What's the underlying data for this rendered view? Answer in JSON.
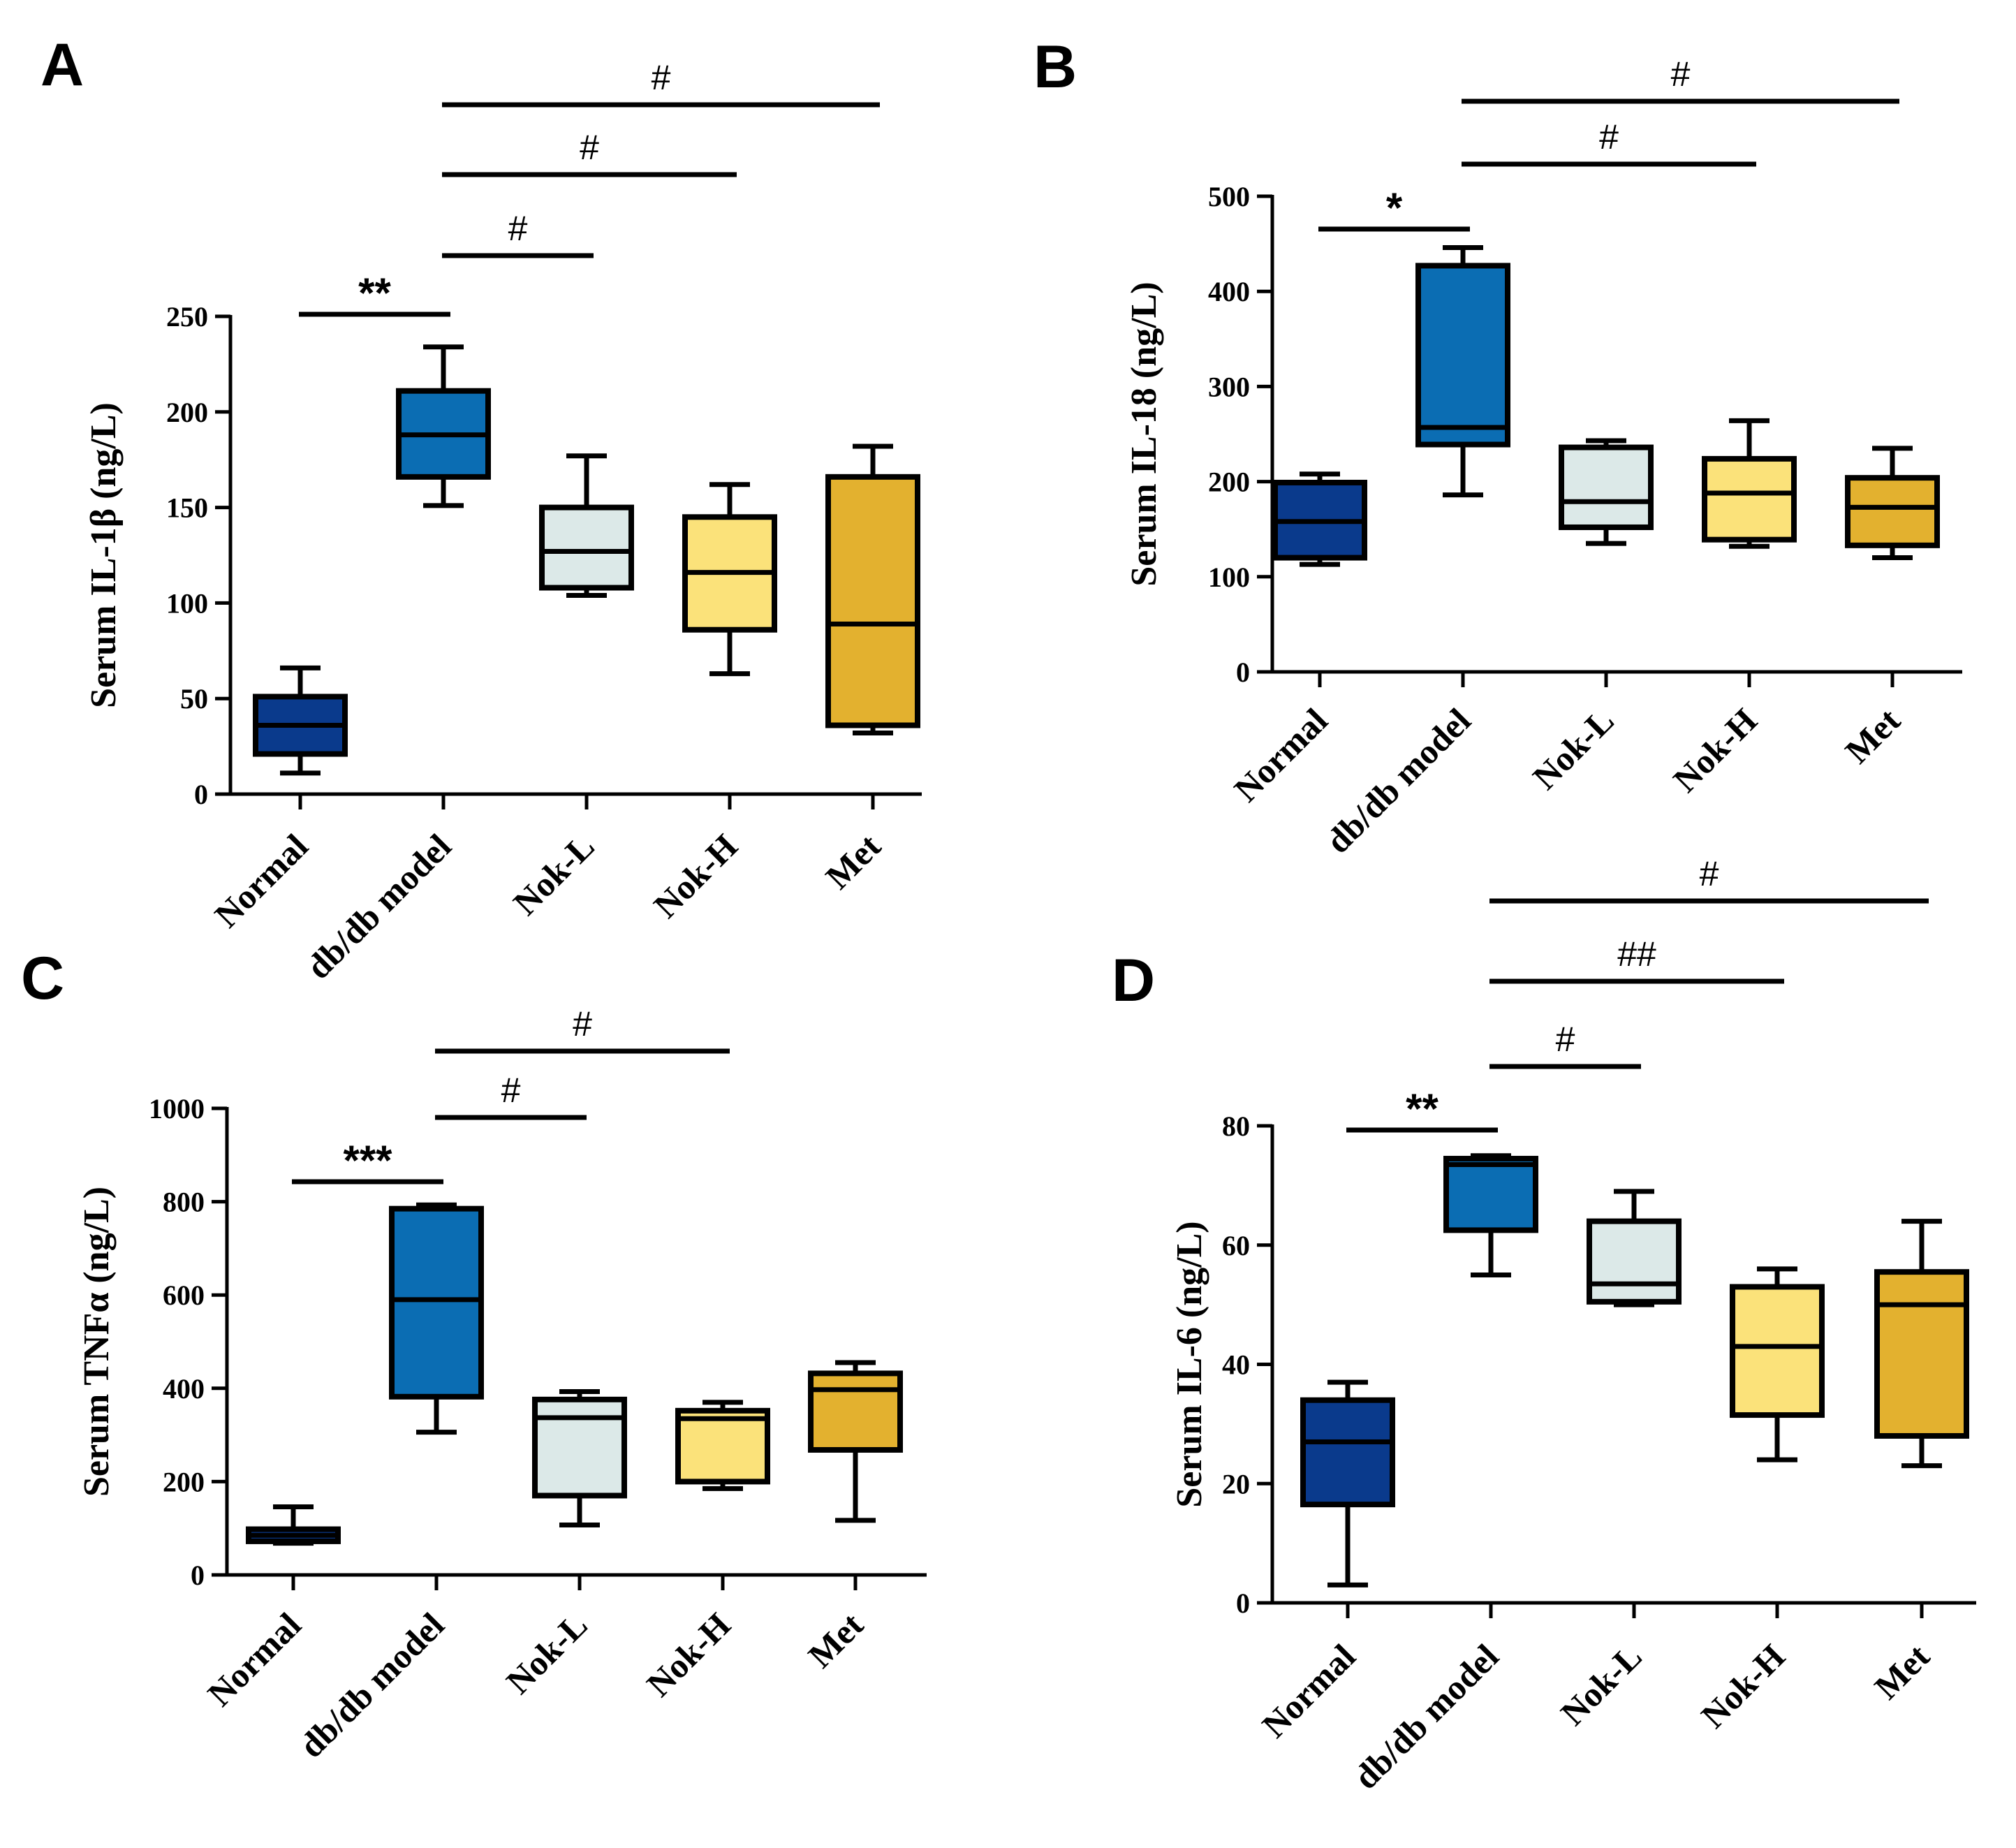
{
  "figure": {
    "colors": {
      "Normal": "#0a3a8c",
      "db/db model": "#0b6db3",
      "Nok-L": "#dce9e8",
      "Nok-H": "#fbe27a",
      "Met": "#e3b12f",
      "stroke": "#000000"
    }
  },
  "chart_data": [
    {
      "panel": "A",
      "type": "box",
      "ylabel": "Serum IL-1β (ng/L)",
      "ylim": [
        0,
        250
      ],
      "yticks": [
        0,
        50,
        100,
        150,
        200,
        250
      ],
      "categories": [
        "Normal",
        "db/db model",
        "Nok-L",
        "Nok-H",
        "Met"
      ],
      "boxes": [
        {
          "min": 11,
          "q1": 21,
          "median": 36,
          "q3": 51,
          "max": 66
        },
        {
          "min": 151,
          "q1": 166,
          "median": 188,
          "q3": 211,
          "max": 234
        },
        {
          "min": 104,
          "q1": 108,
          "median": 127,
          "q3": 150,
          "max": 177
        },
        {
          "min": 63,
          "q1": 86,
          "median": 116,
          "q3": 145,
          "max": 162
        },
        {
          "min": 32,
          "q1": 36,
          "median": 89,
          "q3": 166,
          "max": 182
        }
      ],
      "comparisons": [
        {
          "from": 0,
          "to": 1,
          "label": "**",
          "level": 0
        },
        {
          "from": 1,
          "to": 2,
          "label": "#",
          "level": 1
        },
        {
          "from": 1,
          "to": 3,
          "label": "#",
          "level": 2
        },
        {
          "from": 1,
          "to": 4,
          "label": "#",
          "level": 3
        }
      ]
    },
    {
      "panel": "B",
      "type": "box",
      "ylabel": "Serum IL-18 (ng/L)",
      "ylim": [
        0,
        500
      ],
      "yticks": [
        0,
        100,
        200,
        300,
        400,
        500
      ],
      "categories": [
        "Normal",
        "db/db model",
        "Nok-L",
        "Nok-H",
        "Met"
      ],
      "boxes": [
        {
          "min": 113,
          "q1": 120,
          "median": 158,
          "q3": 199,
          "max": 208
        },
        {
          "min": 186,
          "q1": 239,
          "median": 257,
          "q3": 427,
          "max": 446
        },
        {
          "min": 135,
          "q1": 152,
          "median": 179,
          "q3": 236,
          "max": 243
        },
        {
          "min": 132,
          "q1": 139,
          "median": 188,
          "q3": 224,
          "max": 264
        },
        {
          "min": 120,
          "q1": 133,
          "median": 173,
          "q3": 204,
          "max": 235
        }
      ],
      "comparisons": [
        {
          "from": 0,
          "to": 1,
          "label": "*",
          "level": 0
        },
        {
          "from": 1,
          "to": 3,
          "label": "#",
          "level": 1
        },
        {
          "from": 1,
          "to": 4,
          "label": "#",
          "level": 2
        }
      ]
    },
    {
      "panel": "C",
      "type": "box",
      "ylabel": "Serum TNFα (ng/L)",
      "ylim": [
        0,
        1000
      ],
      "yticks": [
        0,
        200,
        400,
        600,
        800,
        1000
      ],
      "categories": [
        "Normal",
        "db/db model",
        "Nok-L",
        "Nok-H",
        "Met"
      ],
      "boxes": [
        {
          "min": 68,
          "q1": 72,
          "median": 85,
          "q3": 98,
          "max": 146
        },
        {
          "min": 306,
          "q1": 382,
          "median": 590,
          "q3": 785,
          "max": 793
        },
        {
          "min": 107,
          "q1": 170,
          "median": 337,
          "q3": 376,
          "max": 393
        },
        {
          "min": 185,
          "q1": 200,
          "median": 335,
          "q3": 352,
          "max": 370
        },
        {
          "min": 117,
          "q1": 268,
          "median": 397,
          "q3": 432,
          "max": 455
        }
      ],
      "comparisons": [
        {
          "from": 0,
          "to": 1,
          "label": "***",
          "level": 0
        },
        {
          "from": 1,
          "to": 2,
          "label": "#",
          "level": 1
        },
        {
          "from": 1,
          "to": 3,
          "label": "#",
          "level": 2
        }
      ]
    },
    {
      "panel": "D",
      "type": "box",
      "ylabel": "Serum  IL-6 (ng/L)",
      "ylim": [
        0,
        80
      ],
      "yticks": [
        0,
        20,
        40,
        60,
        80
      ],
      "categories": [
        "Normal",
        "db/db model",
        "Nok-L",
        "Nok-H",
        "Met"
      ],
      "boxes": [
        {
          "min": 3,
          "q1": 16.5,
          "median": 27,
          "q3": 34,
          "max": 37
        },
        {
          "min": 55,
          "q1": 62.5,
          "median": 73.5,
          "q3": 74.5,
          "max": 75
        },
        {
          "min": 50,
          "q1": 50.5,
          "median": 53.5,
          "q3": 64,
          "max": 69
        },
        {
          "min": 24,
          "q1": 31.5,
          "median": 43,
          "q3": 53,
          "max": 56
        },
        {
          "min": 23,
          "q1": 28,
          "median": 50,
          "q3": 55.5,
          "max": 64
        }
      ],
      "comparisons": [
        {
          "from": 0,
          "to": 1,
          "label": "**",
          "level": 0
        },
        {
          "from": 1,
          "to": 2,
          "label": "#",
          "level": 1
        },
        {
          "from": 1,
          "to": 3,
          "label": "##",
          "level": 2
        },
        {
          "from": 1,
          "to": 4,
          "label": "#",
          "level": 3
        }
      ]
    }
  ]
}
